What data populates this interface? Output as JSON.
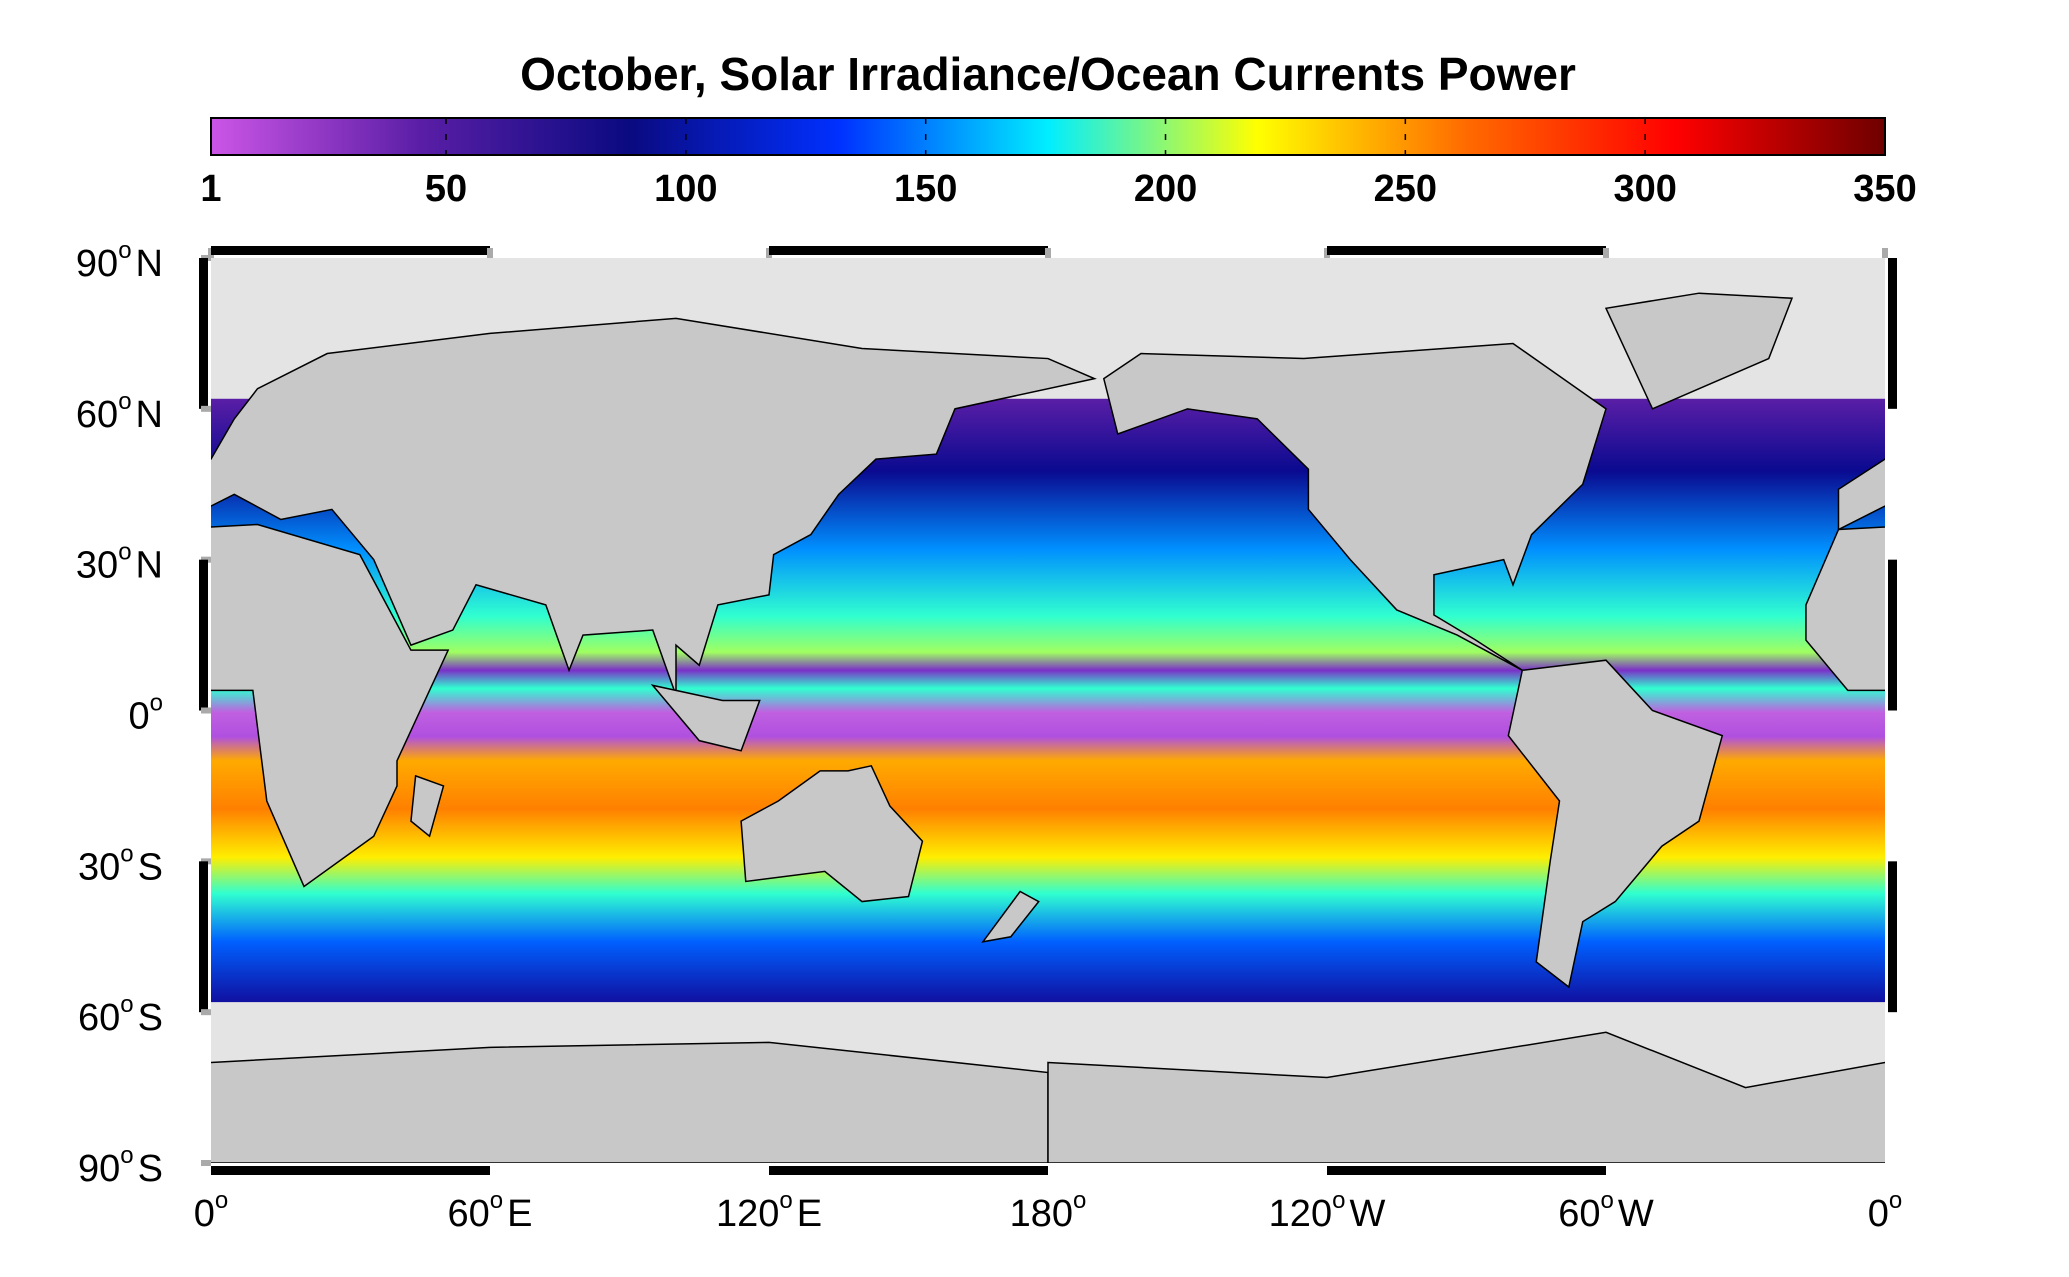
{
  "chart_data": {
    "type": "map",
    "title": "October, Solar Irradiance/Ocean Currents Power",
    "colorbar": {
      "lim": [
        1,
        350
      ],
      "ticks": [
        1,
        50,
        100,
        150,
        200,
        250,
        300,
        350
      ],
      "colors": [
        "#cc55e6",
        "#5a1ea6",
        "#0a0a80",
        "#0030ff",
        "#00eeff",
        "#ffff00",
        "#ff6a00",
        "#ff0000",
        "#6e0000"
      ]
    },
    "lat_ticks": [
      {
        "value": 90,
        "label": "90",
        "sup": "o",
        "hem": "N"
      },
      {
        "value": 60,
        "label": "60",
        "sup": "o",
        "hem": "N"
      },
      {
        "value": 30,
        "label": "30",
        "sup": "o",
        "hem": "N"
      },
      {
        "value": 0,
        "label": "0",
        "sup": "o"
      },
      {
        "value": -30,
        "label": "30",
        "sup": "o",
        "hem": "S"
      },
      {
        "value": -60,
        "label": "60",
        "sup": "o",
        "hem": "S"
      },
      {
        "value": -90,
        "label": "90",
        "sup": "o",
        "hem": "S"
      }
    ],
    "lon_ticks": [
      {
        "value": 0,
        "label": "0",
        "sup": "o"
      },
      {
        "value": 60,
        "label": "60",
        "sup": "o",
        "hem": "E"
      },
      {
        "value": 120,
        "label": "120",
        "sup": "o",
        "hem": "E"
      },
      {
        "value": 180,
        "label": "180",
        "sup": "o"
      },
      {
        "value": 240,
        "label": "120",
        "sup": "o",
        "hem": "W"
      },
      {
        "value": 300,
        "label": "60",
        "sup": "o",
        "hem": "W"
      },
      {
        "value": 360,
        "label": "0",
        "sup": "o"
      }
    ]
  }
}
